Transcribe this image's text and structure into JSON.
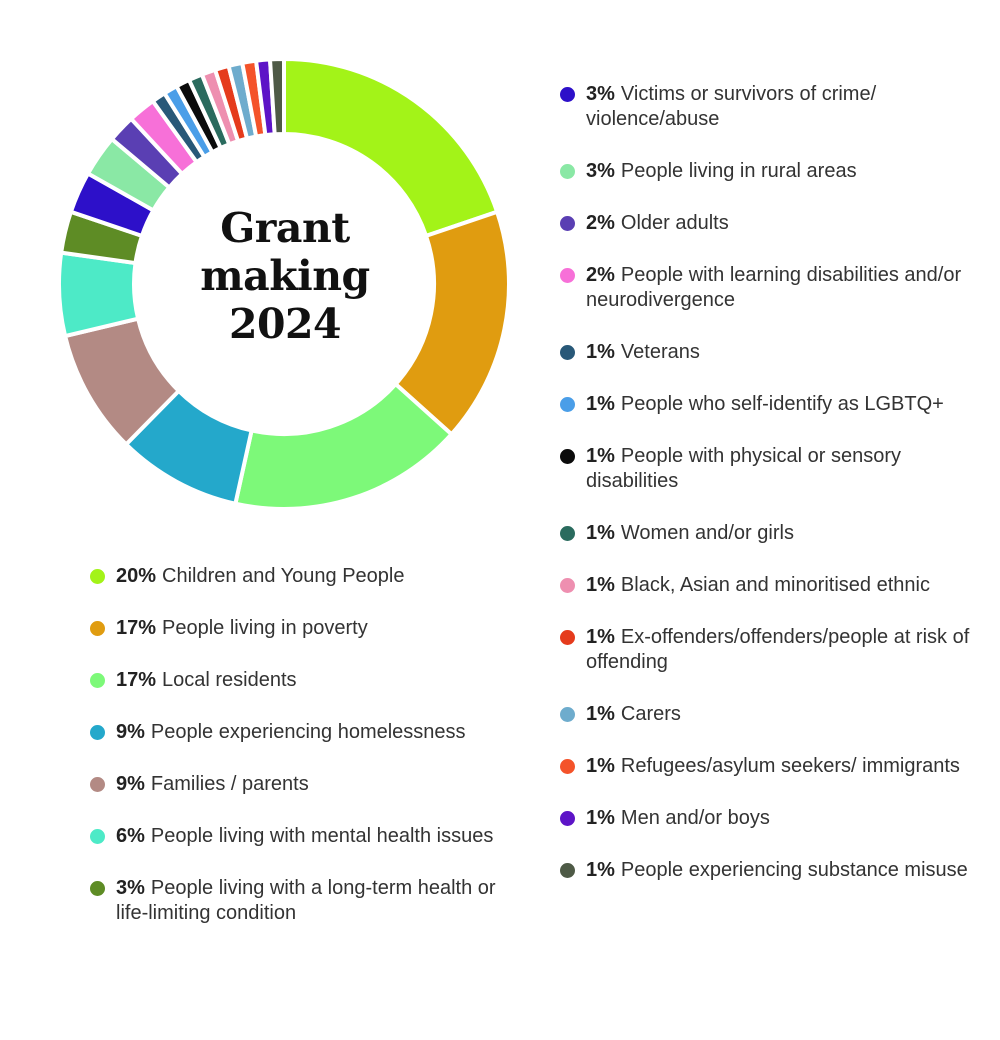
{
  "chart_data": {
    "type": "pie",
    "variant": "donut",
    "title_lines": [
      "Grant",
      "making",
      "2024"
    ],
    "legend_columns": [
      [
        "Children and Young People",
        "People living in poverty",
        "Local residents",
        "People experiencing homelessness",
        "Families / parents",
        "People living with mental health issues",
        "People living with a long-term health or life-limiting condition"
      ],
      [
        "Victims or survivors of crime/ violence/abuse",
        "People living in rural areas",
        "Older adults",
        "People with learning disabilities and/or neurodivergence",
        "Veterans",
        "People who self-identify as LGBTQ+",
        "People with physical or sensory disabilities",
        "Women and/or girls",
        "Black, Asian and minoritised ethnic",
        "Ex-offenders/offenders/people at risk of offending",
        "Carers",
        "Refugees/asylum seekers/ immigrants",
        "Men and/or boys",
        "People experiencing substance misuse"
      ]
    ],
    "slices": [
      {
        "label": "Children and Young People",
        "pct_label": "20%",
        "value": 20,
        "color": "#a3f318"
      },
      {
        "label": "People living in poverty",
        "pct_label": "17%",
        "value": 17,
        "color": "#e09c10"
      },
      {
        "label": "Local residents",
        "pct_label": "17%",
        "value": 17,
        "color": "#7df979"
      },
      {
        "label": "People experiencing homelessness",
        "pct_label": "9%",
        "value": 9,
        "color": "#24a8cb"
      },
      {
        "label": "Families / parents",
        "pct_label": "9%",
        "value": 9,
        "color": "#b38a84"
      },
      {
        "label": "People living with mental health issues",
        "pct_label": "6%",
        "value": 6,
        "color": "#4deac7"
      },
      {
        "label": "People living with a long-term health or life-limiting condition",
        "pct_label": "3%",
        "value": 3,
        "color": "#5e8c25"
      },
      {
        "label": "Victims or survivors of crime/ violence/abuse",
        "pct_label": "3%",
        "value": 3,
        "color": "#2d10c9"
      },
      {
        "label": "People living in rural areas",
        "pct_label": "3%",
        "value": 3,
        "color": "#8ae8a5"
      },
      {
        "label": "Older adults",
        "pct_label": "2%",
        "value": 2,
        "color": "#5a3fb3"
      },
      {
        "label": "People with learning disabilities and/or neurodivergence",
        "pct_label": "2%",
        "value": 2,
        "color": "#f770d8"
      },
      {
        "label": "Veterans",
        "pct_label": "1%",
        "value": 1,
        "color": "#285878"
      },
      {
        "label": "People who self-identify as LGBTQ+",
        "pct_label": "1%",
        "value": 1,
        "color": "#4a9ee8"
      },
      {
        "label": "People with physical or sensory disabilities",
        "pct_label": "1%",
        "value": 1,
        "color": "#0b0b0b"
      },
      {
        "label": "Women and/or girls",
        "pct_label": "1%",
        "value": 1,
        "color": "#2a6b5e"
      },
      {
        "label": "Black, Asian and minoritised ethnic",
        "pct_label": "1%",
        "value": 1,
        "color": "#ee8fb0"
      },
      {
        "label": "Ex-offenders/offenders/people at risk of offending",
        "pct_label": "1%",
        "value": 1,
        "color": "#e53b1c"
      },
      {
        "label": "Carers",
        "pct_label": "1%",
        "value": 1,
        "color": "#6eaccd"
      },
      {
        "label": "Refugees/asylum seekers/ immigrants",
        "pct_label": "1%",
        "value": 1,
        "color": "#f4532a"
      },
      {
        "label": "Men and/or boys",
        "pct_label": "1%",
        "value": 1,
        "color": "#5d14c7"
      },
      {
        "label": "People experiencing substance misuse",
        "pct_label": "1%",
        "value": 1,
        "color": "#4e5a46"
      }
    ]
  }
}
